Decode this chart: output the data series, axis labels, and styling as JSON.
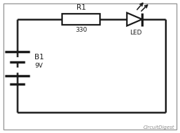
{
  "bg_color": "#ffffff",
  "line_color": "#1a1a1a",
  "text_color": "#1a1a1a",
  "border_color": "#999999",
  "watermark": "CircuitDigest",
  "watermark_color": "#888888",
  "r1_label": "R1",
  "r1_value": "330",
  "b1_label": "B1",
  "b1_value": "9V",
  "led_label": "LED",
  "circuit_lw": 1.8,
  "component_lw": 1.6
}
